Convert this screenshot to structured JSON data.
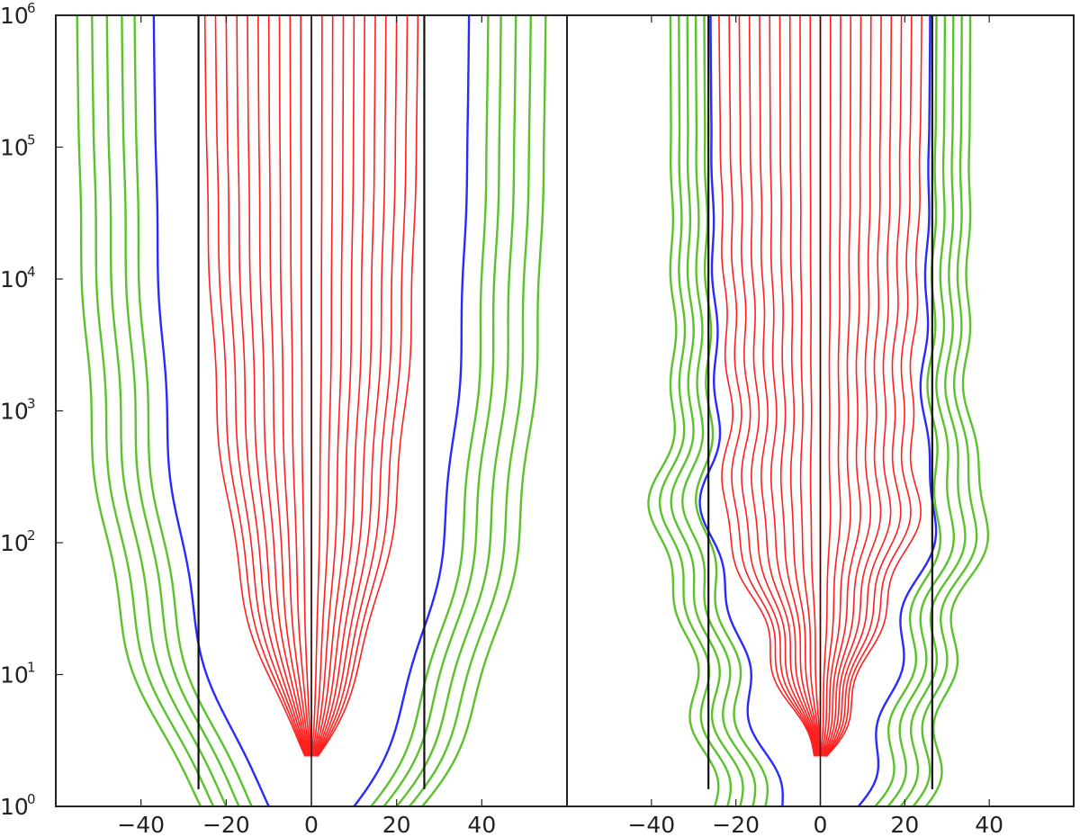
{
  "chart_data": [
    {
      "type": "line",
      "title": "",
      "xlabel": "",
      "ylabel": "",
      "xlim": [
        -60,
        60
      ],
      "ylim": [
        1,
        1000000
      ],
      "yscale": "log",
      "xticks": [
        -40,
        -20,
        0,
        20,
        40
      ],
      "xtick_labels": [
        "−40",
        "−20",
        "0",
        "20",
        "40"
      ],
      "yticks": [
        1,
        10,
        100,
        1000,
        10000,
        100000,
        1000000
      ],
      "ytick_labels": [
        {
          "base": "10",
          "exp": "0"
        },
        {
          "base": "10",
          "exp": "1"
        },
        {
          "base": "10",
          "exp": "2"
        },
        {
          "base": "10",
          "exp": "3"
        },
        {
          "base": "10",
          "exp": "4"
        },
        {
          "base": "10",
          "exp": "5"
        },
        {
          "base": "10",
          "exp": "6"
        }
      ],
      "grid": false,
      "legend": "none",
      "colors": {
        "inner": "#ff2020",
        "separatrix": "#2a2aff",
        "outer": "#5cc22c",
        "boundary": "#111111"
      },
      "boundaries_x": [
        -26.5,
        26.5
      ],
      "red_lines_final_x": [
        -25,
        -22.5,
        -20,
        -17.5,
        -15,
        -12.5,
        -10,
        -7.5,
        -5,
        -2.5,
        0,
        2.5,
        5,
        7.5,
        10,
        12.5,
        15,
        17.5,
        20,
        22.5,
        25
      ],
      "blue_lines": [
        {
          "y_start": 1,
          "x_start": -10,
          "x_at_100": -27,
          "x_at_1000": -33,
          "x_final": -37
        },
        {
          "y_start": 1,
          "x_start": 10,
          "x_at_100": 27,
          "x_at_1000": 33,
          "x_final": 37
        }
      ],
      "green_lines": [
        {
          "x_start": -14,
          "x_final": -41.5
        },
        {
          "x_start": -17,
          "x_final": -44.5
        },
        {
          "x_start": -20,
          "x_final": -48
        },
        {
          "x_start": -23,
          "x_final": -51.5
        },
        {
          "x_start": -26,
          "x_final": -55
        },
        {
          "x_start": 14,
          "x_final": 41.5
        },
        {
          "x_start": 17,
          "x_final": 44.5
        },
        {
          "x_start": 20,
          "x_final": 48
        },
        {
          "x_start": 23,
          "x_final": 51.5
        },
        {
          "x_start": 26,
          "x_final": 55
        }
      ],
      "y_max": 1000000
    },
    {
      "type": "line",
      "title": "",
      "xlabel": "",
      "ylabel": "",
      "xlim": [
        -60,
        60
      ],
      "ylim": [
        1,
        1000000
      ],
      "yscale": "log",
      "xticks": [
        -40,
        -20,
        0,
        20,
        40
      ],
      "xtick_labels": [
        "−40",
        "−20",
        "0",
        "20",
        "40"
      ],
      "grid": false,
      "legend": "none",
      "colors": {
        "inner": "#ff2020",
        "separatrix": "#2a2aff",
        "outer": "#5cc22c",
        "boundary": "#111111"
      },
      "boundaries_x": [
        -26.5,
        26.5
      ],
      "red_lines_final_x": [
        -24,
        -21.6,
        -19.2,
        -16.8,
        -14.4,
        -12,
        -9.6,
        -7.2,
        -4.8,
        -2.4,
        0,
        2.4,
        4.8,
        7.2,
        9.6,
        12,
        14.4,
        16.8,
        19.2,
        21.6,
        24
      ],
      "blue_lines": [
        {
          "y_start": 1,
          "x_start": -9,
          "x_at_150": -28,
          "x_final": -26
        },
        {
          "y_start": 1,
          "x_start": 9,
          "x_at_150": 28,
          "x_final": 26
        }
      ],
      "green_lines": [
        {
          "x_start": -13,
          "x_at_150": -31,
          "x_final": -27.5
        },
        {
          "x_start": -16,
          "x_at_150": -34,
          "x_final": -29.5
        },
        {
          "x_start": -19,
          "x_at_150": -36.5,
          "x_final": -31.5
        },
        {
          "x_start": -22,
          "x_at_150": -39,
          "x_final": -33.5
        },
        {
          "x_start": -25,
          "x_at_150": -41.5,
          "x_final": -35.5
        },
        {
          "x_start": 13,
          "x_at_150": 31,
          "x_final": 27.5
        },
        {
          "x_start": 16,
          "x_at_150": 34,
          "x_final": 29.5
        },
        {
          "x_start": 19,
          "x_at_150": 36.5,
          "x_final": 31.5
        },
        {
          "x_start": 22,
          "x_at_150": 39,
          "x_final": 33.5
        },
        {
          "x_start": 25,
          "x_at_150": 41.5,
          "x_final": 35.5
        }
      ],
      "y_max": 1000000
    }
  ]
}
